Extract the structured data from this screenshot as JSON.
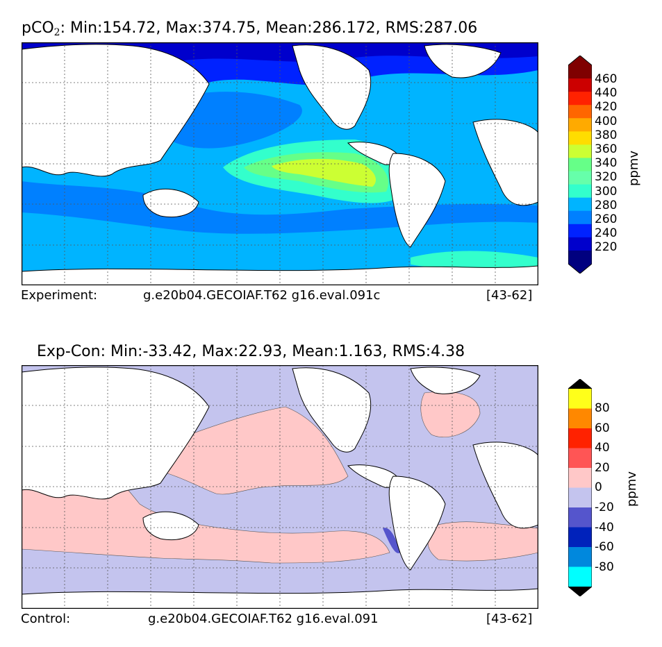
{
  "panels": [
    {
      "id": "top",
      "title_var": "pCO",
      "title_sub": "2",
      "title_stats": ": Min:154.72, Max:374.75, Mean:286.172, RMS:287.06",
      "caption_label": "Experiment:",
      "caption_case": "g.e20b04.GECOIAF.T62 g16.eval.091c",
      "caption_years": "[43-62]",
      "ocean_color": "#00b4ff",
      "colorbar": {
        "units": "ppmv",
        "ticks": [
          "460",
          "440",
          "420",
          "400",
          "380",
          "360",
          "340",
          "320",
          "300",
          "280",
          "260",
          "240",
          "220"
        ],
        "under_color": "#000080",
        "over_color": "#800000",
        "colors_top_to_bottom": [
          "#7f0000",
          "#cc0000",
          "#ff2200",
          "#ff6600",
          "#ffaa00",
          "#ffdd00",
          "#ccff33",
          "#66ff88",
          "#66ffaa",
          "#33ffcc",
          "#00b4ff",
          "#0080ff",
          "#0022ff",
          "#0000cc",
          "#00007f"
        ]
      }
    },
    {
      "id": "bottom",
      "title_stats": "Exp-Con: Min:-33.42, Max:22.93, Mean:1.163, RMS:4.38",
      "caption_label": "Control:",
      "caption_case": "g.e20b04.GECOIAF.T62 g16.eval.091",
      "caption_years": "[43-62]",
      "ocean_color": "#c4c4ee",
      "pos_color": "#ffc8c8",
      "colorbar": {
        "units": "ppmv",
        "ticks": [
          "80",
          "60",
          "40",
          "20",
          "0",
          "-20",
          "-40",
          "-60",
          "-80"
        ],
        "under_color": "#000000",
        "over_color": "#000000",
        "colors_top_to_bottom": [
          "#ffff1a",
          "#ff8800",
          "#ff2200",
          "#ff5555",
          "#ffc8c8",
          "#c4c4ee",
          "#5555cc",
          "#0022bb",
          "#0088dd",
          "#00ffff"
        ]
      }
    }
  ]
}
